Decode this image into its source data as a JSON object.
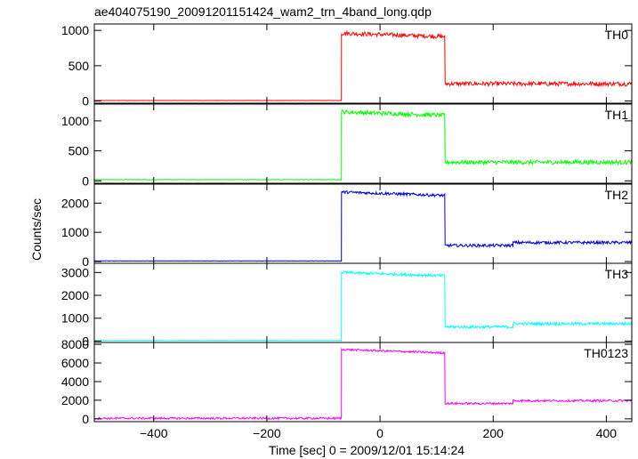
{
  "chart_data": {
    "type": "line",
    "title": "ae404075190_20091201151424_wam2_trn_4band_long.qdp",
    "xlabel": "Time [sec] 0 = 2009/12/01 15:14:24",
    "ylabel": "Counts/sec",
    "xlim": [
      -505,
      445
    ],
    "x_ticks": [
      -400,
      -200,
      0,
      200,
      400
    ],
    "x_tick_labels": [
      "−400",
      "−200",
      "0",
      "200",
      "400"
    ],
    "grid": false,
    "panels": [
      {
        "name": "TH0",
        "color": "#ff0000",
        "ylim": [
          -30,
          1090
        ],
        "y_ticks": [
          0,
          500,
          1000
        ],
        "y_tick_labels": [
          "0",
          "500",
          "1000"
        ],
        "segments": [
          [
            -505,
            -68,
            8
          ],
          [
            -68,
            115,
            960
          ],
          [
            115,
            445,
            245
          ]
        ],
        "noise": 30
      },
      {
        "name": "TH1",
        "color": "#00ff00",
        "ylim": [
          -40,
          1280
        ],
        "y_ticks": [
          0,
          500,
          1000
        ],
        "y_tick_labels": [
          "0",
          "500",
          "1000"
        ],
        "segments": [
          [
            -505,
            -68,
            20
          ],
          [
            -68,
            115,
            1150
          ],
          [
            115,
            445,
            310
          ]
        ],
        "noise": 35
      },
      {
        "name": "TH2",
        "color": "#0000cc",
        "ylim": [
          -60,
          2650
        ],
        "y_ticks": [
          0,
          1000,
          2000
        ],
        "y_tick_labels": [
          "0",
          "1000",
          "2000"
        ],
        "segments": [
          [
            -505,
            -68,
            20
          ],
          [
            -68,
            115,
            2380
          ],
          [
            115,
            235,
            550
          ],
          [
            235,
            445,
            650
          ]
        ],
        "noise": 50
      },
      {
        "name": "TH3",
        "color": "#00ffff",
        "ylim": [
          -60,
          3400
        ],
        "y_ticks": [
          0,
          1000,
          2000,
          3000
        ],
        "y_tick_labels": [
          "0",
          "1000",
          "2000",
          "3000"
        ],
        "segments": [
          [
            -505,
            -68,
            25
          ],
          [
            -68,
            115,
            3000
          ],
          [
            115,
            235,
            620
          ],
          [
            235,
            445,
            760
          ]
        ],
        "noise": 60
      },
      {
        "name": "TH0123",
        "color": "#ff00ff",
        "ylim": [
          -300,
          8200
        ],
        "y_ticks": [
          0,
          2000,
          4000,
          6000,
          8000
        ],
        "y_tick_labels": [
          "0",
          "2000",
          "4000",
          "6000",
          "8000"
        ],
        "segments": [
          [
            -505,
            -68,
            60
          ],
          [
            -68,
            115,
            7450
          ],
          [
            115,
            235,
            1650
          ],
          [
            235,
            445,
            1950
          ]
        ],
        "noise": 110
      }
    ]
  }
}
